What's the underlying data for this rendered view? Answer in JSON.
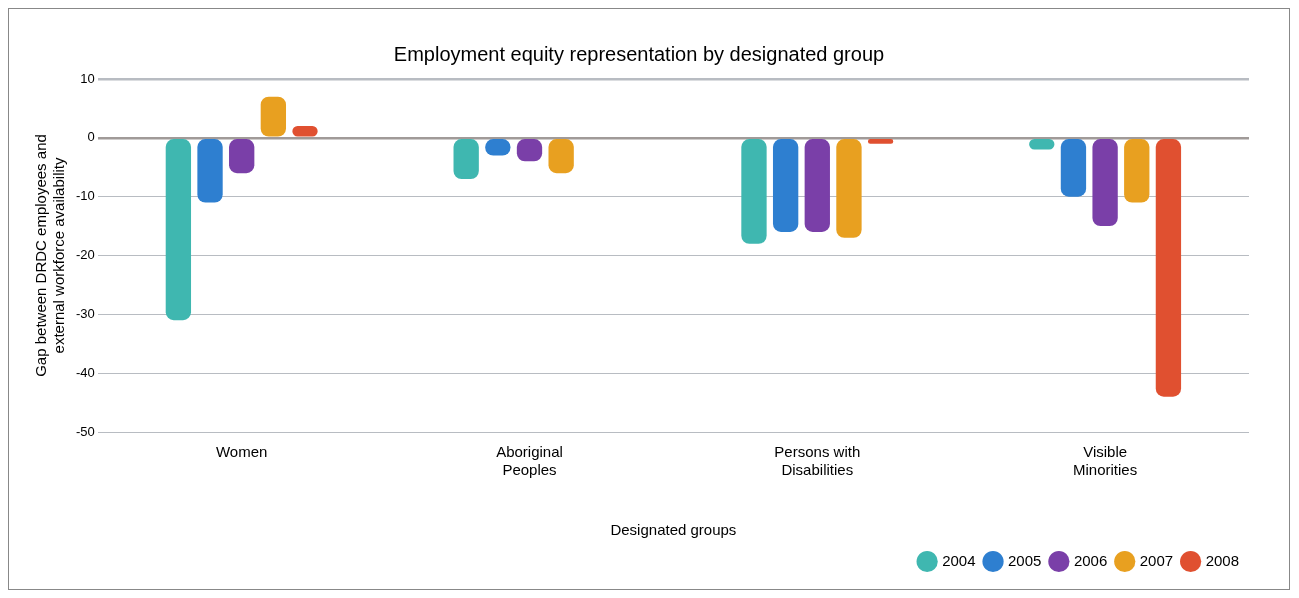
{
  "chart_data": {
    "type": "bar",
    "title": "Employment equity representation by designated group",
    "xlabel": "Designated groups",
    "ylabel": "Gap between DRDC employees and external workforce availability",
    "categories": [
      "Women",
      "Aboriginal Peoples",
      "Persons with Disabilities",
      "Visible Minorities"
    ],
    "series": [
      {
        "name": "2004",
        "color": "#3fb7b0",
        "values": [
          -31,
          -7,
          -18,
          -2
        ]
      },
      {
        "name": "2005",
        "color": "#2e7fd0",
        "values": [
          -11,
          -3,
          -16,
          -10
        ]
      },
      {
        "name": "2006",
        "color": "#7a3fa8",
        "values": [
          -6,
          -4,
          -16,
          -15
        ]
      },
      {
        "name": "2007",
        "color": "#e8a020",
        "values": [
          7,
          -6,
          -17,
          -11
        ]
      },
      {
        "name": "2008",
        "color": "#e05030",
        "values": [
          2,
          null,
          -1,
          -44
        ]
      }
    ],
    "ylim": [
      -50,
      10
    ],
    "yticks": [
      -50,
      -40,
      -30,
      -20,
      -10,
      0,
      10
    ],
    "grid": "y",
    "legend": "bottom right"
  }
}
